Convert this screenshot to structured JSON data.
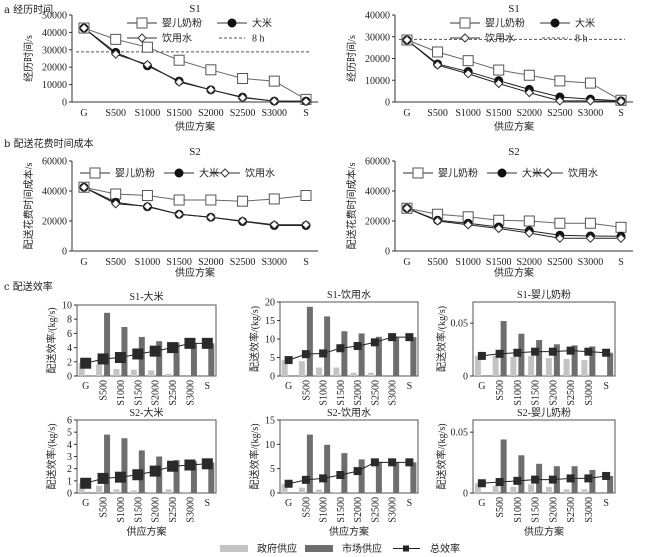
{
  "section_labels": {
    "a": "a 经历时间",
    "b": "b 配送花费时间成本",
    "c": "c 配送效率"
  },
  "bottom_legend": {
    "gov": "政府供应",
    "market": "市场供应",
    "total": "总效率"
  },
  "colors": {
    "gov": "#c4c4c4",
    "market": "#6e6e6e",
    "total": "#222222",
    "line": "#555555"
  },
  "chart_data": [
    {
      "id": "a-left",
      "type": "line",
      "title": "S1",
      "xlabel": "供应方案",
      "ylabel": "经历时间/s",
      "categories": [
        "G",
        "S500",
        "S1000",
        "S1500",
        "S2000",
        "S2500",
        "S3000",
        "S"
      ],
      "ylim": [
        0,
        50000
      ],
      "yticks": [
        0,
        10000,
        20000,
        30000,
        40000,
        50000
      ],
      "legend_position": "top-right",
      "series": [
        {
          "name": "婴儿奶粉",
          "marker": "square",
          "values": [
            42500,
            36000,
            31500,
            24000,
            18500,
            13500,
            12000,
            1500
          ]
        },
        {
          "name": "大米",
          "marker": "filled-circle",
          "values": [
            42500,
            28500,
            20800,
            12000,
            7000,
            2800,
            500,
            500
          ]
        },
        {
          "name": "饮用水",
          "marker": "diamond",
          "values": [
            42500,
            27500,
            21500,
            11500,
            7000,
            2500,
            500,
            300
          ]
        }
      ],
      "reference_line": {
        "name": "8 h",
        "value": 28800
      }
    },
    {
      "id": "a-right",
      "type": "line",
      "title": "S1",
      "xlabel": "供应方案",
      "ylabel": "经历时间/s",
      "categories": [
        "G",
        "S500",
        "S1000",
        "S1500",
        "S2000",
        "S2500",
        "S3000",
        "S"
      ],
      "ylim": [
        0,
        40000
      ],
      "yticks": [
        0,
        10000,
        20000,
        30000,
        40000
      ],
      "legend_position": "top-right",
      "series": [
        {
          "name": "婴儿奶粉",
          "marker": "square",
          "values": [
            28500,
            23000,
            19000,
            14700,
            12300,
            9700,
            8700,
            800
          ]
        },
        {
          "name": "大米",
          "marker": "filled-circle",
          "values": [
            28500,
            17500,
            14000,
            9800,
            5800,
            2300,
            1300,
            500
          ]
        },
        {
          "name": "饮用水",
          "marker": "diamond",
          "values": [
            28500,
            17000,
            13000,
            8500,
            4300,
            500,
            500,
            300
          ]
        }
      ],
      "reference_line": {
        "name": "8 h",
        "value": 28800
      }
    },
    {
      "id": "b-left",
      "type": "line",
      "title": "S2",
      "xlabel": "供应方案",
      "ylabel": "配送花费时间成本/s",
      "categories": [
        "G",
        "S500",
        "S1000",
        "S1500",
        "S2000",
        "S2500",
        "S3000",
        "S"
      ],
      "ylim": [
        0,
        60000
      ],
      "yticks": [
        0,
        20000,
        40000,
        60000
      ],
      "legend_position": "top",
      "series": [
        {
          "name": "婴儿奶粉",
          "marker": "square",
          "values": [
            42500,
            38000,
            37000,
            34000,
            34000,
            33200,
            34700,
            37000
          ]
        },
        {
          "name": "大米",
          "marker": "filled-circle",
          "values": [
            42500,
            32500,
            29500,
            24500,
            22500,
            19700,
            17000,
            17000
          ]
        },
        {
          "name": "饮用水",
          "marker": "diamond",
          "values": [
            42500,
            31500,
            29800,
            24500,
            22500,
            20000,
            17500,
            17500
          ]
        }
      ]
    },
    {
      "id": "b-right",
      "type": "line",
      "title": "S2",
      "xlabel": "供应方案",
      "ylabel": "配送花费时间成本/s",
      "categories": [
        "G",
        "S500",
        "S1000",
        "S1500",
        "S2000",
        "S2500",
        "S3000",
        "S"
      ],
      "ylim": [
        0,
        60000
      ],
      "yticks": [
        0,
        20000,
        40000,
        60000
      ],
      "legend_position": "top",
      "series": [
        {
          "name": "婴儿奶粉",
          "marker": "square",
          "values": [
            28500,
            24500,
            22800,
            20500,
            20000,
            18500,
            18500,
            15800
          ]
        },
        {
          "name": "大米",
          "marker": "filled-circle",
          "values": [
            28500,
            20500,
            18500,
            16000,
            13500,
            10500,
            10000,
            9800
          ]
        },
        {
          "name": "饮用水",
          "marker": "diamond",
          "values": [
            28500,
            20000,
            17500,
            15000,
            12000,
            8500,
            8500,
            8500
          ]
        }
      ]
    },
    {
      "id": "c-s1-rice",
      "type": "bar",
      "title": "S1-大米",
      "xlabel": "",
      "ylabel": "配送效率/(kg/s)",
      "categories": [
        "G",
        "S500",
        "S1000",
        "S1500",
        "S2000",
        "S2500",
        "S3000",
        "S"
      ],
      "ylim": [
        0,
        10
      ],
      "yticks": [
        "0",
        "2",
        "4",
        "6",
        "8",
        "10"
      ],
      "series": [
        {
          "name": "政府供应",
          "values": [
            1.8,
            1.6,
            1.0,
            0.9,
            0.8,
            0.3,
            0,
            0
          ]
        },
        {
          "name": "市场供应",
          "values": [
            0,
            8.9,
            6.9,
            5.5,
            4.9,
            4.7,
            4.6,
            4.6
          ]
        },
        {
          "name": "总效率",
          "values": [
            1.8,
            2.4,
            2.6,
            3.1,
            3.5,
            4.0,
            4.6,
            4.6
          ]
        }
      ]
    },
    {
      "id": "c-s1-water",
      "type": "bar",
      "title": "S1-饮用水",
      "xlabel": "",
      "ylabel": "配送效率/(kg/s)",
      "categories": [
        "G",
        "S500",
        "S1000",
        "S1500",
        "S2000",
        "S2500",
        "S3000",
        "S"
      ],
      "ylim": [
        0,
        20
      ],
      "yticks": [
        "0",
        "5",
        "10",
        "15",
        "20"
      ],
      "series": [
        {
          "name": "政府供应",
          "values": [
            4.3,
            4.0,
            2.3,
            2.3,
            0.9,
            0.9,
            0,
            0
          ]
        },
        {
          "name": "市场供应",
          "values": [
            0,
            18.7,
            16.1,
            12.1,
            11.5,
            10.6,
            10.5,
            10.5
          ]
        },
        {
          "name": "总效率",
          "values": [
            4.3,
            5.9,
            6.1,
            7.5,
            8.1,
            9.1,
            10.5,
            10.5
          ]
        }
      ]
    },
    {
      "id": "c-s1-milk",
      "type": "bar",
      "title": "S1-婴儿奶粉",
      "xlabel": "",
      "ylabel": "配送效率/(kg/s)",
      "categories": [
        "G",
        "S500",
        "S1000",
        "S1500",
        "S2000",
        "S2500",
        "S3000",
        "S"
      ],
      "ylim": [
        0,
        0.07
      ],
      "yticks": [
        "0",
        "0.05"
      ],
      "series": [
        {
          "name": "政府供应",
          "values": [
            0.019,
            0.019,
            0.018,
            0.019,
            0.017,
            0.016,
            0.015,
            0
          ]
        },
        {
          "name": "市场供应",
          "values": [
            0,
            0.052,
            0.04,
            0.034,
            0.03,
            0.029,
            0.028,
            0.022
          ]
        },
        {
          "name": "总效率",
          "values": [
            0.019,
            0.021,
            0.022,
            0.023,
            0.023,
            0.024,
            0.023,
            0.022
          ]
        }
      ]
    },
    {
      "id": "c-s2-rice",
      "type": "bar",
      "title": "S2-大米",
      "xlabel": "供应方案",
      "ylabel": "配送效率/(kg/s)",
      "categories": [
        "G",
        "S500",
        "S1000",
        "S1500",
        "S2000",
        "S2500",
        "S3000",
        "S"
      ],
      "ylim": [
        0,
        6
      ],
      "yticks": [
        "0",
        "1",
        "2",
        "3",
        "4",
        "5",
        "6"
      ],
      "series": [
        {
          "name": "政府供应",
          "values": [
            0.8,
            0.6,
            0.3,
            0.2,
            0.1,
            0.3,
            0.1,
            0
          ]
        },
        {
          "name": "市场供应",
          "values": [
            0,
            4.8,
            4.5,
            3.5,
            3.0,
            2.7,
            2.6,
            2.5
          ]
        },
        {
          "name": "总效率",
          "values": [
            0.8,
            1.2,
            1.3,
            1.5,
            1.8,
            2.2,
            2.3,
            2.4
          ]
        }
      ]
    },
    {
      "id": "c-s2-water",
      "type": "bar",
      "title": "S2-饮用水",
      "xlabel": "供应方案",
      "ylabel": "配送效率/(kg/s)",
      "categories": [
        "G",
        "S500",
        "S1000",
        "S1500",
        "S2000",
        "S2500",
        "S3000",
        "S"
      ],
      "ylim": [
        0,
        15
      ],
      "yticks": [
        "0",
        "5",
        "10",
        "15"
      ],
      "series": [
        {
          "name": "政府供应",
          "values": [
            1.9,
            1.1,
            0.7,
            0.2,
            0,
            0,
            0,
            0
          ]
        },
        {
          "name": "市场供应",
          "values": [
            0,
            12.0,
            9.9,
            8.2,
            6.9,
            6.4,
            6.3,
            6.3
          ]
        },
        {
          "name": "总效率",
          "values": [
            1.9,
            2.7,
            3.0,
            3.7,
            4.5,
            6.3,
            6.3,
            6.3
          ]
        }
      ]
    },
    {
      "id": "c-s2-milk",
      "type": "bar",
      "title": "S2-婴儿奶粉",
      "xlabel": "供应方案",
      "ylabel": "配送效率/(kg/s)",
      "categories": [
        "G",
        "S500",
        "S1000",
        "S1500",
        "S2000",
        "S2500",
        "S3000",
        "S"
      ],
      "ylim": [
        0,
        0.06
      ],
      "yticks": [
        "0",
        "0.05"
      ],
      "series": [
        {
          "name": "政府供应",
          "values": [
            0.008,
            0.006,
            0.005,
            0.007,
            0.005,
            0.003,
            0.003,
            0
          ]
        },
        {
          "name": "市场供应",
          "values": [
            0,
            0.044,
            0.031,
            0.024,
            0.022,
            0.022,
            0.019,
            0.014
          ]
        },
        {
          "name": "总效率",
          "values": [
            0.008,
            0.009,
            0.01,
            0.011,
            0.011,
            0.012,
            0.012,
            0.014
          ]
        }
      ]
    }
  ]
}
